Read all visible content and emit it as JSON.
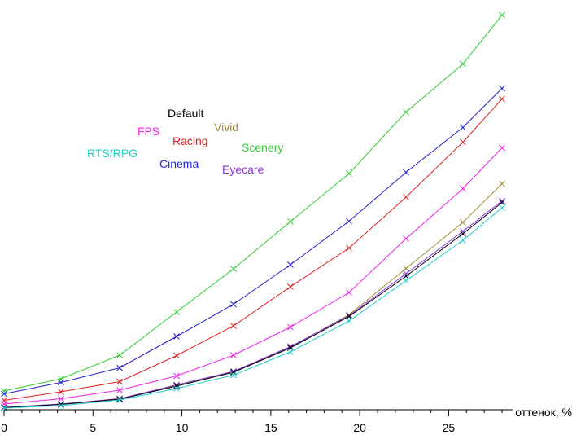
{
  "chart_data": {
    "type": "line",
    "xlabel": "оттенок, %",
    "ylabel": "",
    "title": "",
    "xlim": [
      0,
      28
    ],
    "ylim": [
      0,
      100
    ],
    "xticks": [
      0,
      5,
      10,
      15,
      20,
      25
    ],
    "x": [
      0,
      3.2,
      6.5,
      9.7,
      12.9,
      16.1,
      19.4,
      22.6,
      25.8,
      28.0
    ],
    "grid": false,
    "legend": "inline labels, upper-left area",
    "series": [
      {
        "name": "Scenery",
        "color": "#33cc33",
        "values": [
          4.6,
          7.6,
          13.4,
          24.0,
          34.6,
          46.2,
          58.0,
          73.1,
          84.9,
          96.9
        ]
      },
      {
        "name": "Cinema",
        "color": "#2222cc",
        "values": [
          3.9,
          6.7,
          10.3,
          18.0,
          25.9,
          35.6,
          46.3,
          58.3,
          69.3,
          78.9
        ]
      },
      {
        "name": "Racing",
        "color": "#dd2222",
        "values": [
          2.3,
          4.4,
          6.9,
          13.3,
          20.6,
          30.2,
          39.7,
          52.2,
          65.7,
          76.3
        ]
      },
      {
        "name": "FPS",
        "color": "#ee22ee",
        "values": [
          1.4,
          2.7,
          4.8,
          8.3,
          13.4,
          20.3,
          28.8,
          42.0,
          54.3,
          64.3
        ]
      },
      {
        "name": "Vivid",
        "color": "#a08a33",
        "values": [
          0.5,
          1.4,
          2.7,
          6.0,
          9.4,
          15.4,
          23.3,
          34.7,
          46.0,
          55.5
        ]
      },
      {
        "name": "Eyecare",
        "color": "#8833dd",
        "values": [
          0.6,
          1.4,
          2.7,
          6.1,
          9.4,
          15.5,
          23.1,
          33.4,
          43.8,
          51.3
        ]
      },
      {
        "name": "Default",
        "color": "#000000",
        "values": [
          0.5,
          1.3,
          2.6,
          5.8,
          9.2,
          15.2,
          22.9,
          32.8,
          43.2,
          50.9
        ]
      },
      {
        "name": "RTS/RPG",
        "color": "#22cccc",
        "values": [
          0.4,
          1.0,
          2.4,
          5.2,
          8.5,
          14.2,
          21.8,
          31.7,
          41.6,
          49.6
        ]
      }
    ]
  }
}
